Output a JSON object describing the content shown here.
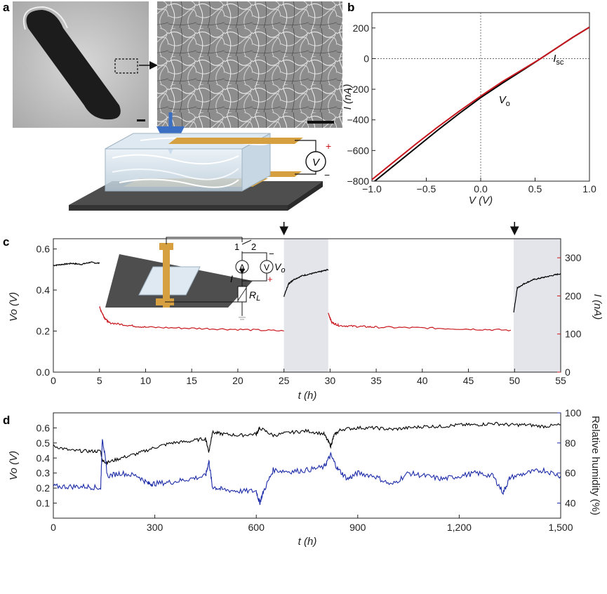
{
  "figure": {
    "panels": [
      "a",
      "b",
      "c",
      "d"
    ]
  },
  "panel_a": {
    "scale_bar_note": "",
    "voltmeter_label": "V",
    "plus": "+",
    "minus": "−"
  },
  "chart_data": [
    {
      "id": "b",
      "type": "line",
      "xlabel": "V (V)",
      "ylabel": "I (nA)",
      "xlim": [
        -1.0,
        1.0
      ],
      "ylim": [
        -800,
        300
      ],
      "xticks": [
        "−1.0",
        "−0.5",
        "0.0",
        "0.5",
        "1.0"
      ],
      "xtick_values": [
        -1.0,
        -0.5,
        0.0,
        0.5,
        1.0
      ],
      "yticks": [
        "200",
        "0",
        "−200",
        "−400",
        "−600",
        "−800"
      ],
      "ytick_values": [
        200,
        0,
        -200,
        -400,
        -600,
        -800
      ],
      "annotations": [
        {
          "text": "I",
          "sub": "sc",
          "x": 0.55,
          "y": -40
        },
        {
          "text": "V",
          "sub": "o",
          "x": 0.05,
          "y": -310
        }
      ],
      "series": [
        {
          "color": "#000000",
          "x": [
            -1.0,
            -0.8,
            -0.6,
            -0.4,
            -0.2,
            0.0,
            0.2,
            0.4,
            0.55,
            0.7,
            0.85,
            1.0
          ],
          "y": [
            -815,
            -700,
            -585,
            -470,
            -360,
            -255,
            -160,
            -70,
            0,
            70,
            140,
            205
          ]
        },
        {
          "color": "#c8171e",
          "x": [
            -1.0,
            -0.8,
            -0.6,
            -0.4,
            -0.2,
            0.0,
            0.2,
            0.4,
            0.55,
            0.7,
            0.85,
            1.0
          ],
          "y": [
            -790,
            -675,
            -560,
            -450,
            -345,
            -245,
            -150,
            -65,
            0,
            70,
            140,
            205
          ]
        }
      ]
    },
    {
      "id": "c",
      "type": "line",
      "xlabel": "t (h)",
      "ylabel_left": "Vo (V)",
      "ylabel_right": "I (nA)",
      "xlim": [
        0,
        55
      ],
      "ylim_left": [
        0.0,
        0.65
      ],
      "ylim_right": [
        0,
        350
      ],
      "xticks": [
        "0",
        "5",
        "10",
        "15",
        "20",
        "25",
        "30",
        "35",
        "40",
        "45",
        "50",
        "55"
      ],
      "xtick_values": [
        0,
        5,
        10,
        15,
        20,
        25,
        30,
        35,
        40,
        45,
        50,
        55
      ],
      "yticks_left": [
        "0.0",
        "0.2",
        "0.4",
        "0.6"
      ],
      "ytick_values_left": [
        0.0,
        0.2,
        0.4,
        0.6
      ],
      "yticks_right": [
        "0",
        "100",
        "200",
        "300"
      ],
      "ytick_values_right": [
        0,
        100,
        200,
        300
      ],
      "shaded_regions": [
        [
          25,
          29.8
        ],
        [
          49.9,
          55
        ]
      ],
      "arrows_at": [
        25,
        50
      ],
      "inset": {
        "switch_1": "1",
        "switch_2": "2",
        "ammeter": "A",
        "voltmeter": "V",
        "vo_label": "V",
        "vo_sub": "o",
        "current": "I",
        "resistor": "R",
        "resistor_sub": "L",
        "plus": "+",
        "minus": "−"
      },
      "series": [
        {
          "axis": "left",
          "color": "#000000",
          "x": [
            0,
            1,
            2,
            3,
            4,
            5
          ],
          "y": [
            0.52,
            0.525,
            0.53,
            0.525,
            0.535,
            0.53
          ]
        },
        {
          "axis": "left",
          "color": "#000000",
          "x": [
            25,
            25.5,
            26,
            27,
            28,
            29,
            29.8
          ],
          "y": [
            0.37,
            0.43,
            0.45,
            0.47,
            0.48,
            0.49,
            0.5
          ]
        },
        {
          "axis": "left",
          "color": "#000000",
          "x": [
            49.9,
            50.3,
            51,
            52,
            53,
            54,
            55
          ],
          "y": [
            0.29,
            0.41,
            0.43,
            0.45,
            0.46,
            0.47,
            0.48
          ]
        },
        {
          "axis": "right",
          "color": "#c8171e",
          "x": [
            5,
            5.5,
            6,
            8,
            10,
            15,
            20,
            25
          ],
          "y": [
            170,
            145,
            130,
            123,
            118,
            115,
            112,
            108
          ]
        },
        {
          "axis": "right",
          "color": "#c8171e",
          "x": [
            29.8,
            30.2,
            31,
            33,
            35,
            40,
            45,
            49.6
          ],
          "y": [
            155,
            130,
            122,
            120,
            118,
            116,
            113,
            110
          ]
        }
      ]
    },
    {
      "id": "d",
      "type": "line",
      "xlabel": "t (h)",
      "ylabel_left": "Vo (V)",
      "ylabel_right": "Relative humidity (%)",
      "xlim": [
        0,
        1500
      ],
      "ylim_left": [
        0.0,
        0.7
      ],
      "ylim_right": [
        30,
        100
      ],
      "xticks": [
        "0",
        "300",
        "600",
        "900",
        "1,200",
        "1,500"
      ],
      "xtick_values": [
        0,
        300,
        600,
        900,
        1200,
        1500
      ],
      "yticks_left": [
        "0.1",
        "0.2",
        "0.3",
        "0.4",
        "0.5",
        "0.6"
      ],
      "ytick_values_left": [
        0.1,
        0.2,
        0.3,
        0.4,
        0.5,
        0.6
      ],
      "yticks_right": [
        "40",
        "60",
        "80",
        "100"
      ],
      "ytick_values_right": [
        40,
        60,
        80,
        100
      ],
      "series": [
        {
          "axis": "left",
          "color": "#000000",
          "x": [
            0,
            50,
            100,
            140,
            145,
            160,
            200,
            250,
            300,
            350,
            400,
            450,
            460,
            470,
            500,
            550,
            600,
            610,
            650,
            700,
            750,
            800,
            820,
            830,
            850,
            900,
            950,
            1000,
            1050,
            1100,
            1150,
            1200,
            1250,
            1300,
            1350,
            1400,
            1450,
            1500
          ],
          "y": [
            0.48,
            0.45,
            0.445,
            0.445,
            0.38,
            0.37,
            0.4,
            0.43,
            0.47,
            0.5,
            0.51,
            0.53,
            0.44,
            0.57,
            0.56,
            0.55,
            0.56,
            0.6,
            0.55,
            0.57,
            0.58,
            0.56,
            0.48,
            0.55,
            0.59,
            0.6,
            0.6,
            0.59,
            0.6,
            0.61,
            0.61,
            0.62,
            0.62,
            0.63,
            0.62,
            0.62,
            0.61,
            0.62
          ]
        },
        {
          "axis": "right",
          "color": "#1c2ba8",
          "x": [
            0,
            50,
            100,
            140,
            145,
            160,
            200,
            250,
            280,
            300,
            350,
            400,
            450,
            460,
            470,
            500,
            550,
            600,
            610,
            620,
            650,
            700,
            750,
            800,
            820,
            840,
            870,
            900,
            950,
            1000,
            1050,
            1100,
            1150,
            1200,
            1250,
            1300,
            1330,
            1350,
            1400,
            1450,
            1500
          ],
          "y": [
            51,
            51,
            51,
            50,
            84,
            58,
            60,
            58,
            53,
            53,
            54,
            56,
            58,
            68,
            51,
            49,
            48,
            48,
            40,
            47,
            62,
            61,
            62,
            64,
            72,
            63,
            56,
            60,
            58,
            52,
            60,
            58,
            56,
            58,
            60,
            58,
            47,
            57,
            60,
            62,
            58
          ]
        }
      ]
    }
  ]
}
